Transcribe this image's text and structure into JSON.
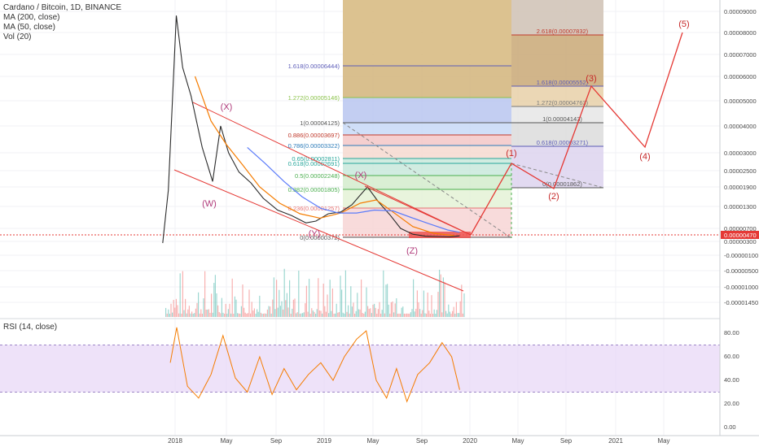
{
  "header": {
    "symbol_line": "Cardano / Bitcoin, 1D, BINANCE",
    "ma200_label": "MA (200, close)",
    "ma50_label": "MA (50, close)",
    "vol_label": "Vol (20)",
    "rsi_label": "RSI (14, close)"
  },
  "colors": {
    "bull": "#26a69a",
    "bear": "#ef5350",
    "price_line": "#2b2b2b",
    "ma50": "#f57c00",
    "ma200": "#5c7cfa",
    "channel": "#e53935",
    "wave_label": "#b03a7a",
    "forecast": "#e53935",
    "rsi_line": "#f57c00",
    "rsi_band": "#e7d5f7",
    "current_price_tag": "#e53935"
  },
  "chart_data": [
    {
      "type": "line",
      "title": "Cardano / Bitcoin, 1D, BINANCE",
      "price_axis_ticks": [
        "0.00009000",
        "0.00008000",
        "0.00007000",
        "0.00006000",
        "0.00005000",
        "0.00004000",
        "0.00003000",
        "0.00002500",
        "0.00001900",
        "0.00001300",
        "0.00000700",
        "0.00000300",
        "-0.00000100",
        "-0.00000500",
        "-0.00001000",
        "-0.00001450"
      ],
      "current_price": "0.00000470",
      "time_axis_ticks": [
        "2018",
        "May",
        "Sep",
        "2019",
        "May",
        "Sep",
        "2020",
        "May",
        "Sep",
        "2021",
        "May"
      ],
      "series": [
        {
          "name": "price",
          "x": [
            "2017-12-01",
            "2017-12-15",
            "2018-01-04",
            "2018-01-20",
            "2018-02-10",
            "2018-03-10",
            "2018-04-05",
            "2018-04-25",
            "2018-05-15",
            "2018-06-10",
            "2018-07-10",
            "2018-08-10",
            "2018-09-15",
            "2018-10-20",
            "2018-11-25",
            "2018-12-20",
            "2019-01-20",
            "2019-02-20",
            "2019-03-20",
            "2019-04-10",
            "2019-04-28",
            "2019-05-25",
            "2019-06-25",
            "2019-07-20",
            "2019-08-20",
            "2019-09-20",
            "2019-10-20",
            "2019-11-20",
            "2019-12-15"
          ],
          "y": [
            2.5e-06,
            1.8e-05,
            8.8e-05,
            6.4e-05,
            5.2e-05,
            3.2e-05,
            2.1e-05,
            4e-05,
            3e-05,
            2.45e-05,
            2.05e-05,
            1.55e-05,
            1.2e-05,
            1.05e-05,
            8.5e-06,
            9e-06,
            1.1e-05,
            1.15e-05,
            1.35e-05,
            1.65e-05,
            1.9e-05,
            1.45e-05,
            1.05e-05,
            7e-06,
            5.2e-06,
            4.6e-06,
            4.5e-06,
            4.4e-06,
            4.7e-06
          ]
        },
        {
          "name": "MA (50, close)",
          "x": [
            "2018-02-20",
            "2018-04-01",
            "2018-05-10",
            "2018-06-20",
            "2018-08-01",
            "2018-09-20",
            "2018-11-10",
            "2018-12-30",
            "2019-02-20",
            "2019-04-10",
            "2019-05-20",
            "2019-07-01",
            "2019-08-20",
            "2019-10-10",
            "2019-12-01"
          ],
          "y": [
            6e-05,
            4.2e-05,
            3.3e-05,
            2.65e-05,
            1.9e-05,
            1.4e-05,
            1.1e-05,
            9.8e-06,
            1.12e-05,
            1.4e-05,
            1.5e-05,
            1.15e-05,
            7.5e-06,
            5.5e-06,
            4.8e-06
          ]
        },
        {
          "name": "MA (200, close)",
          "x": [
            "2018-07-01",
            "2018-08-15",
            "2018-10-01",
            "2018-11-15",
            "2019-01-01",
            "2019-02-15",
            "2019-04-01",
            "2019-05-15",
            "2019-07-01",
            "2019-08-15",
            "2019-10-01",
            "2019-11-15",
            "2019-12-15"
          ],
          "y": [
            3.2e-05,
            2.7e-05,
            2.1e-05,
            1.6e-05,
            1.25e-05,
            1.12e-05,
            1.12e-05,
            1.2e-05,
            1.18e-05,
            1e-05,
            8.2e-06,
            6.5e-06,
            5.8e-06
          ]
        }
      ],
      "wave_labels": [
        "(W)",
        "(X)",
        "(Y)",
        "(X)",
        "(Z)",
        "(1)",
        "(2)",
        "(3)",
        "(4)",
        "(5)"
      ],
      "fib_retracement_left": [
        {
          "label": "1.618(0.00006444)",
          "color": "#5c5cb8"
        },
        {
          "label": "1.272(0.00005146)",
          "color": "#8bc34a"
        },
        {
          "label": "1(0.00004125)",
          "color": "#555555"
        },
        {
          "label": "0.886(0.00003697)",
          "color": "#c0392b"
        },
        {
          "label": "0.786(0.00003322)",
          "color": "#2b7bb9"
        },
        {
          "label": "0.65(0.00002811)",
          "color": "#26a69a"
        },
        {
          "label": "0.618(0.00002691)",
          "color": "#26a69a"
        },
        {
          "label": "0.5(0.00002248)",
          "color": "#4caf50"
        },
        {
          "label": "0.382(0.00001805)",
          "color": "#4caf50"
        },
        {
          "label": "0.236(0.00001257)",
          "color": "#e57373"
        },
        {
          "label": "0(0.00000372)",
          "color": "#555555"
        }
      ],
      "fib_extension_right": [
        {
          "label": "2.618(0.00007832)",
          "color": "#c0392b"
        },
        {
          "label": "1.618(0.00005552)",
          "color": "#5c5cb8"
        },
        {
          "label": "1.272(0.00004763)",
          "color": "#777777"
        },
        {
          "label": "1(0.00004143)",
          "color": "#555555"
        },
        {
          "label": "0.618(0.00003271)",
          "color": "#5c5cb8"
        },
        {
          "label": "0(0.00001862)",
          "color": "#555555"
        }
      ],
      "grid": true
    },
    {
      "type": "line",
      "title": "RSI (14, close)",
      "axis_ticks": [
        "80.00",
        "60.00",
        "40.00",
        "20.00",
        "0.00"
      ],
      "band": [
        30,
        70
      ],
      "series": [
        {
          "name": "RSI (14, close)",
          "x": [
            "2017-12-20",
            "2018-01-05",
            "2018-02-01",
            "2018-03-01",
            "2018-04-01",
            "2018-05-01",
            "2018-06-01",
            "2018-07-01",
            "2018-08-01",
            "2018-09-01",
            "2018-10-01",
            "2018-11-01",
            "2018-12-01",
            "2019-01-01",
            "2019-02-01",
            "2019-03-01",
            "2019-04-01",
            "2019-04-25",
            "2019-05-20",
            "2019-06-15",
            "2019-07-10",
            "2019-08-05",
            "2019-09-01",
            "2019-10-01",
            "2019-11-01",
            "2019-11-25",
            "2019-12-15"
          ],
          "y": [
            55,
            85,
            35,
            25,
            45,
            78,
            42,
            30,
            60,
            28,
            50,
            32,
            45,
            55,
            40,
            60,
            75,
            82,
            40,
            25,
            50,
            22,
            45,
            55,
            72,
            60,
            32
          ]
        }
      ]
    }
  ]
}
